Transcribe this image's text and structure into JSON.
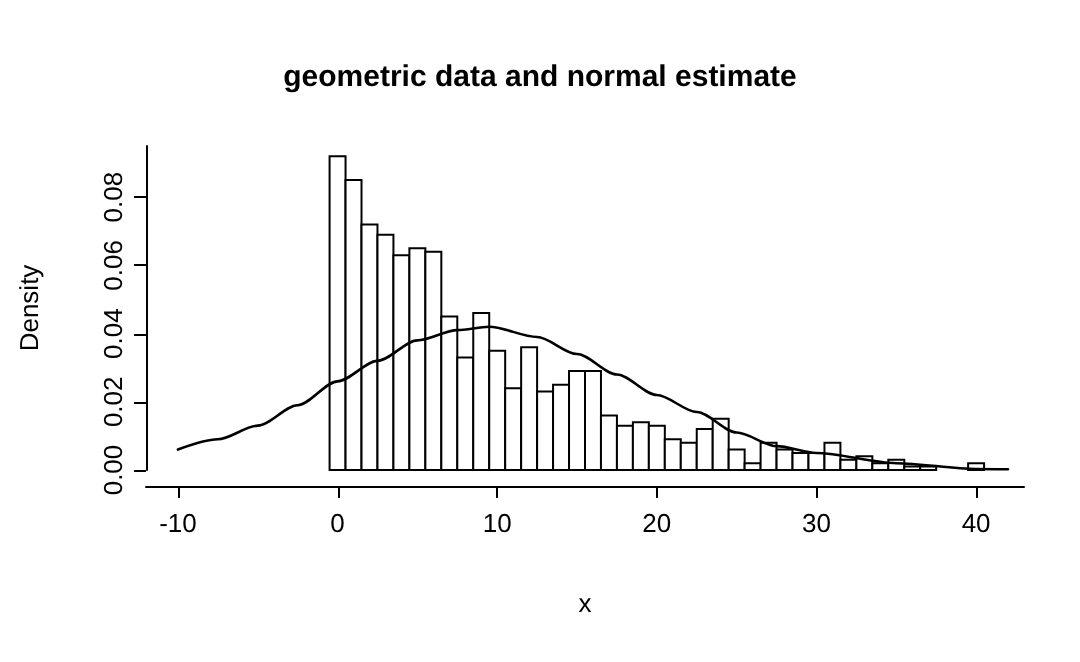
{
  "chart_data": {
    "type": "histogram",
    "title": "geometric data and normal estimate",
    "xlabel": "x",
    "ylabel": "Density",
    "xlim": [
      -12,
      43
    ],
    "xticks": [
      -10,
      0,
      10,
      20,
      30,
      40
    ],
    "ylim": [
      0,
      0.095
    ],
    "yticks": [
      {
        "value": 0,
        "label": "0.00"
      },
      {
        "value": 0.02,
        "label": "0.02"
      },
      {
        "value": 0.04,
        "label": "0.04"
      },
      {
        "value": 0.06,
        "label": "0.06"
      },
      {
        "value": 0.08,
        "label": "0.08"
      }
    ],
    "grid": false,
    "marker": "none",
    "line_style": "solid",
    "series": [
      {
        "color": "#ffffff",
        "bins": [
          -0.5,
          0.5,
          1.5,
          2.5,
          3.5,
          4.5,
          5.5,
          6.5,
          7.5,
          8.5,
          9.5,
          10.5,
          11.5,
          12.5,
          13.5,
          14.5,
          15.5,
          16.5,
          17.5,
          18.5,
          19.5,
          20.5,
          21.5,
          22.5,
          23.5,
          24.5,
          25.5,
          26.5,
          27.5,
          28.5,
          29.5,
          30.5,
          31.5,
          32.5,
          33.5,
          34.5,
          35.5,
          36.5,
          37.5,
          38.5,
          39.5,
          40.5
        ],
        "values": [
          0.092,
          0.085,
          0.072,
          0.069,
          0.063,
          0.065,
          0.064,
          0.045,
          0.033,
          0.046,
          0.035,
          0.024,
          0.036,
          0.023,
          0.025,
          0.029,
          0.029,
          0.016,
          0.013,
          0.014,
          0.013,
          0.009,
          0.008,
          0.012,
          0.015,
          0.006,
          0.002,
          0.008,
          0.006,
          0.005,
          0.005,
          0.008,
          0.003,
          0.004,
          0.002,
          0.003,
          0.001,
          0.001,
          null,
          null,
          0.002
        ]
      },
      {
        "type": "line",
        "color": "#000000",
        "x": [
          -10,
          -7.5,
          -5,
          -2.5,
          0,
          2.5,
          5,
          7.5,
          9.5,
          12.5,
          15,
          17.5,
          20,
          22.5,
          25,
          27.5,
          30,
          35,
          40,
          42
        ],
        "values": [
          0.006,
          0.009,
          0.013,
          0.019,
          0.026,
          0.032,
          0.038,
          0.041,
          0.042,
          0.039,
          0.034,
          0.028,
          0.022,
          0.017,
          0.011,
          0.007,
          0.005,
          0.002,
          0.0003,
          0.0002
        ]
      }
    ]
  }
}
